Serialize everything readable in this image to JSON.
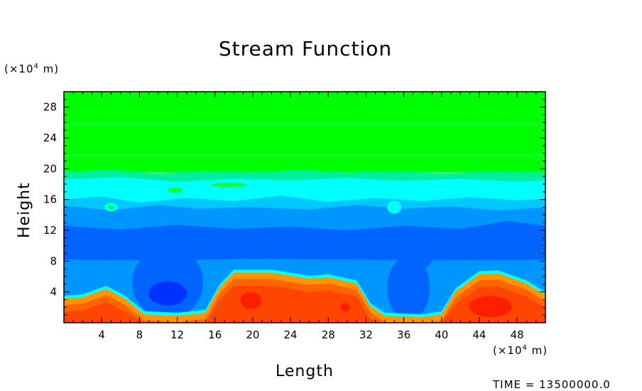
{
  "chart_data": {
    "type": "heatmap",
    "title": "Stream Function",
    "xlabel": "Length",
    "ylabel": "Height",
    "x_unit": {
      "prefix": "(×10",
      "exp": "4",
      "suffix": " m)"
    },
    "y_unit": {
      "prefix": "(×10",
      "exp": "4",
      "suffix": " m)"
    },
    "xlim": [
      0,
      51
    ],
    "ylim": [
      0,
      30
    ],
    "x_ticks": [
      4,
      8,
      12,
      16,
      20,
      24,
      28,
      32,
      36,
      40,
      44,
      48
    ],
    "y_ticks": [
      4,
      8,
      12,
      16,
      20,
      24,
      28
    ],
    "colors": {
      "green": "#00ff00",
      "green_light": "#19f93a",
      "aqua_green": "#00f0a0",
      "cyan": "#00ffff",
      "sky": "#00c8ff",
      "light_blue": "#0096ff",
      "blue": "#0064ff",
      "deep_blue": "#0032ff",
      "orange": "#ff9600",
      "dark_orange": "#ff6400",
      "orange_red": "#ff4600",
      "red": "#ff1e00",
      "axis": "#000000"
    }
  },
  "timestamp": "TIME = 13500000.0"
}
